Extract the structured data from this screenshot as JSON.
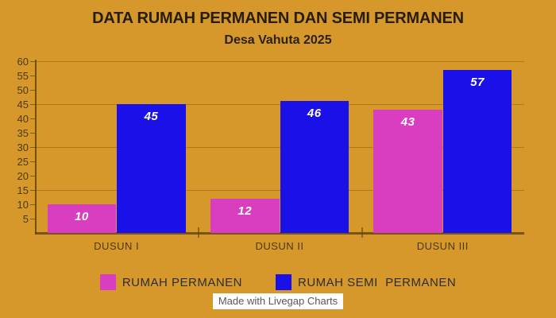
{
  "header": {
    "title": "DATA RUMAH PERMANEN DAN SEMI PERMANEN",
    "subtitle": "Desa Vahuta 2025"
  },
  "chart_data": {
    "type": "bar",
    "title": "DATA RUMAH PERMANEN DAN SEMI PERMANEN",
    "subtitle": "Desa Vahuta 2025",
    "categories": [
      "DUSUN I",
      "DUSUN II",
      "DUSUN III"
    ],
    "series": [
      {
        "name": "RUMAH PERMANEN",
        "color": "#d93ec1",
        "values": [
          10,
          12,
          43
        ]
      },
      {
        "name": "RUMAH SEMI  PERMANEN",
        "color": "#1a10e8",
        "values": [
          45,
          46,
          57
        ]
      }
    ],
    "xlabel": "",
    "ylabel": "",
    "ylim": [
      0,
      60
    ],
    "y_tick_step": 5,
    "grid": true,
    "grid_step": 15,
    "legend_position": "bottom",
    "value_labels": true,
    "value_label_color": "#ffffff",
    "background_color": "#d6982b"
  },
  "watermark": {
    "text": "Made with Livegap Charts"
  }
}
